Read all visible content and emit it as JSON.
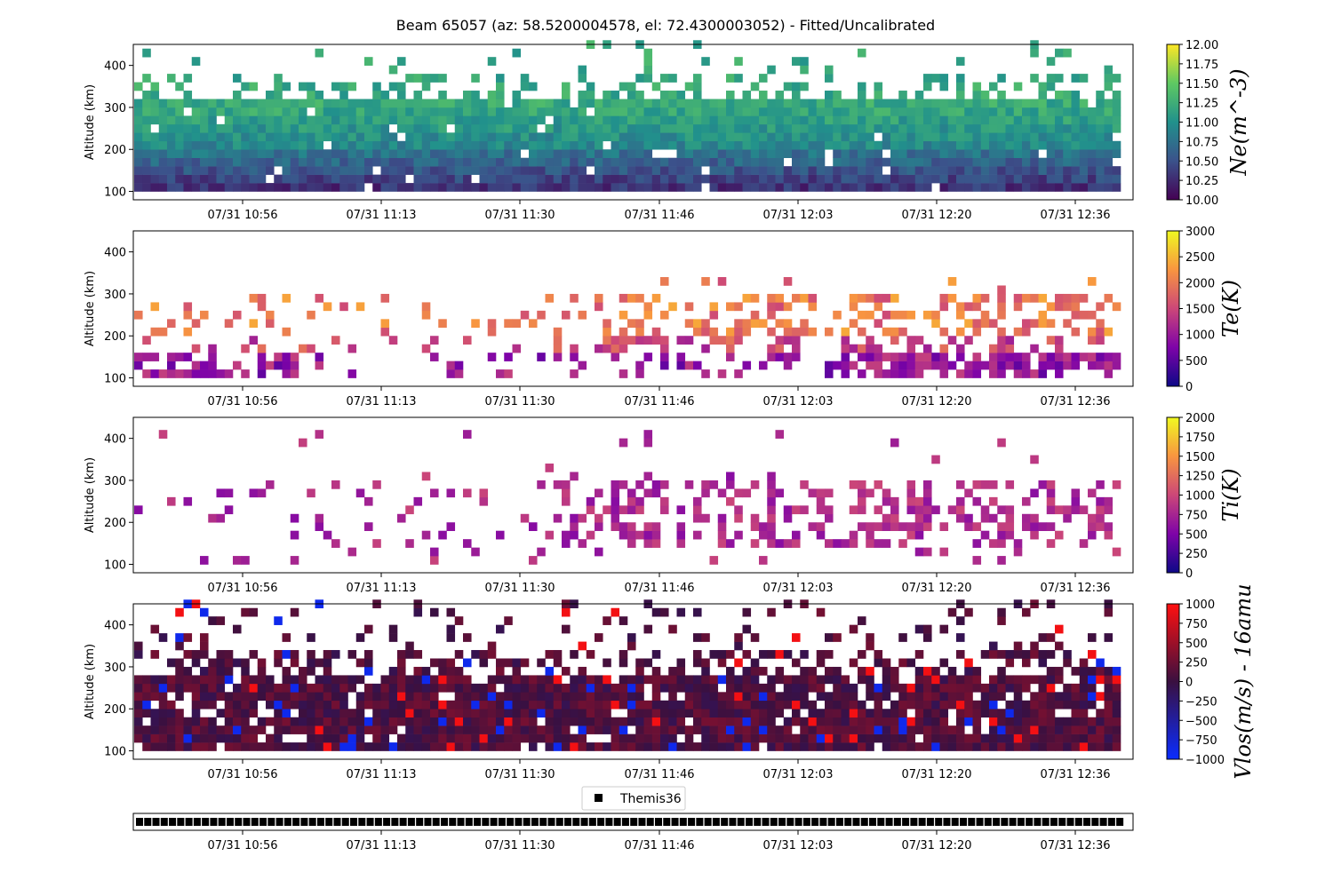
{
  "chart_data": {
    "type": "heatmap",
    "title": "Beam 65057 (az: 58.5200004578, el: 72.4300003052) - Fitted/Uncalibrated",
    "xtick_labels": [
      "07/31 10:56",
      "07/31 11:13",
      "07/31 11:30",
      "07/31 11:46",
      "07/31 12:03",
      "07/31 12:20",
      "07/31 12:36"
    ],
    "ylabel": "Altitude (km)",
    "yticks": [
      100,
      200,
      300,
      400
    ],
    "ylim": [
      80,
      450
    ],
    "time_range": [
      "07/31 10:43",
      "07/31 12:46"
    ],
    "n_time_bins": 120,
    "alt_rows": [
      110,
      130,
      150,
      170,
      190,
      210,
      230,
      250,
      270,
      290,
      310,
      330,
      350,
      370,
      390,
      410,
      430,
      450
    ],
    "panels": [
      {
        "cbar_label": "Ne(m^-3)",
        "cbar_ticks": [
          "10.00",
          "10.25",
          "10.50",
          "10.75",
          "11.00",
          "11.25",
          "11.50",
          "11.75",
          "12.00"
        ],
        "cbar_range": [
          10.0,
          12.0
        ],
        "colormap": "viridis",
        "coverage": "dense below 310 km, sparse above",
        "typical_profile": "about 10.3 near 110 km, rising to about 11.0-11.2 at 250-300 km"
      },
      {
        "cbar_label": "Te(K)",
        "cbar_ticks": [
          "0",
          "500",
          "1000",
          "1500",
          "2000",
          "2500",
          "3000"
        ],
        "cbar_range": [
          0,
          3000
        ],
        "colormap": "plasma",
        "coverage": "sparse, mostly 100-300 km",
        "typical_profile": "about 500 K near 110 km, 1000-2000 K at 200-280 km, occasional 2900 K near 250 km"
      },
      {
        "cbar_label": "Ti(K)",
        "cbar_ticks": [
          "0",
          "250",
          "500",
          "750",
          "1000",
          "1250",
          "1500",
          "1750",
          "2000"
        ],
        "cbar_range": [
          0,
          2000
        ],
        "colormap": "plasma",
        "coverage": "sparse, mostly 100-300 km",
        "typical_profile": "about 500-800 K, occasional 900-1000 K near 250 km"
      },
      {
        "cbar_label": "Vlos(m/s) - 16amu",
        "cbar_ticks": [
          "1000",
          "750",
          "500",
          "250",
          "0",
          "−250",
          "−500",
          "−750",
          "−1000"
        ],
        "cbar_range": [
          -1000,
          1000
        ],
        "colormap": "blue-dark-red diverging",
        "coverage": "dense below 280 km, scattered up to 450 km",
        "typical_profile": "mostly -100 to 300 m/s, scattered points near +/-1000 m/s"
      }
    ],
    "legend": {
      "entries": [
        "Themis36"
      ],
      "marker": "black square",
      "n_markers": 120
    }
  }
}
